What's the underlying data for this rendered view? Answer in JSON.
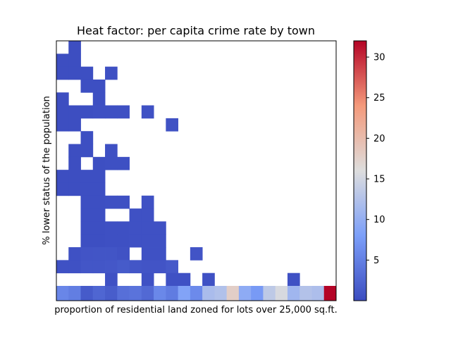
{
  "chart_data": {
    "type": "heatmap",
    "title": "Heat factor: per capita crime rate by town",
    "xlabel": "proportion of residential land zoned for lots over 25,000 sq.ft.",
    "ylabel": "% lower status of the population",
    "colormap": "coolwarm",
    "vmin": 0.0,
    "vmax": 32.0,
    "colorbar_ticks": [
      5,
      10,
      15,
      20,
      25,
      30
    ],
    "n_cols": 23,
    "n_rows": 21,
    "xticks_visible": false,
    "yticks_visible": false,
    "grid": false,
    "cells": [
      [
        0,
        1,
        0.2
      ],
      [
        1,
        0,
        0.2
      ],
      [
        1,
        1,
        0.2
      ],
      [
        2,
        0,
        0.2
      ],
      [
        2,
        1,
        0.2
      ],
      [
        2,
        2,
        0.3
      ],
      [
        2,
        4,
        0.4
      ],
      [
        3,
        2,
        0.3
      ],
      [
        3,
        3,
        0.3
      ],
      [
        4,
        0,
        0.2
      ],
      [
        4,
        3,
        0.3
      ],
      [
        5,
        0,
        0.2
      ],
      [
        5,
        1,
        0.2
      ],
      [
        5,
        2,
        0.3
      ],
      [
        5,
        3,
        0.4
      ],
      [
        5,
        4,
        0.4
      ],
      [
        5,
        5,
        0.4
      ],
      [
        5,
        7,
        0.5
      ],
      [
        6,
        0,
        0.2
      ],
      [
        6,
        1,
        0.2
      ],
      [
        6,
        9,
        0.6
      ],
      [
        7,
        2,
        0.3
      ],
      [
        8,
        1,
        0.2
      ],
      [
        8,
        2,
        0.3
      ],
      [
        8,
        4,
        0.4
      ],
      [
        9,
        1,
        0.2
      ],
      [
        9,
        3,
        0.3
      ],
      [
        9,
        4,
        0.4
      ],
      [
        9,
        5,
        0.4
      ],
      [
        10,
        0,
        0.2
      ],
      [
        10,
        1,
        0.2
      ],
      [
        10,
        2,
        0.3
      ],
      [
        10,
        3,
        0.3
      ],
      [
        11,
        0,
        0.2
      ],
      [
        11,
        1,
        0.2
      ],
      [
        11,
        2,
        0.3
      ],
      [
        11,
        3,
        0.3
      ],
      [
        12,
        2,
        0.3
      ],
      [
        12,
        3,
        0.3
      ],
      [
        12,
        4,
        0.4
      ],
      [
        12,
        5,
        0.4
      ],
      [
        12,
        7,
        0.5
      ],
      [
        13,
        2,
        0.3
      ],
      [
        13,
        3,
        0.3
      ],
      [
        13,
        6,
        0.5
      ],
      [
        13,
        7,
        0.5
      ],
      [
        14,
        2,
        0.3
      ],
      [
        14,
        3,
        0.3
      ],
      [
        14,
        4,
        0.4
      ],
      [
        14,
        5,
        0.4
      ],
      [
        14,
        6,
        0.5
      ],
      [
        14,
        7,
        0.5
      ],
      [
        14,
        8,
        0.5
      ],
      [
        15,
        2,
        0.3
      ],
      [
        15,
        3,
        0.3
      ],
      [
        15,
        4,
        0.4
      ],
      [
        15,
        5,
        0.4
      ],
      [
        15,
        6,
        0.5
      ],
      [
        15,
        7,
        0.5
      ],
      [
        15,
        8,
        0.5
      ],
      [
        16,
        1,
        0.5
      ],
      [
        16,
        2,
        0.8
      ],
      [
        16,
        3,
        0.9
      ],
      [
        16,
        4,
        0.9
      ],
      [
        16,
        5,
        0.6
      ],
      [
        16,
        7,
        0.5
      ],
      [
        16,
        8,
        0.5
      ],
      [
        16,
        11,
        0.8
      ],
      [
        17,
        0,
        0.5
      ],
      [
        17,
        1,
        0.5
      ],
      [
        17,
        2,
        1.0
      ],
      [
        17,
        3,
        1.0
      ],
      [
        17,
        4,
        1.1
      ],
      [
        17,
        5,
        1.4
      ],
      [
        17,
        6,
        1.0
      ],
      [
        17,
        7,
        0.8
      ],
      [
        17,
        8,
        0.8
      ],
      [
        17,
        9,
        1.3
      ],
      [
        18,
        4,
        0.5
      ],
      [
        18,
        7,
        0.5
      ],
      [
        18,
        9,
        0.5
      ],
      [
        18,
        10,
        0.5
      ],
      [
        18,
        12,
        0.5
      ],
      [
        18,
        19,
        0.5
      ],
      [
        19,
        0,
        5.6
      ],
      [
        19,
        1,
        4.8
      ],
      [
        19,
        2,
        1.4
      ],
      [
        19,
        3,
        2.5
      ],
      [
        19,
        4,
        1.6
      ],
      [
        19,
        5,
        3.4
      ],
      [
        19,
        6,
        3.8
      ],
      [
        19,
        7,
        2.8
      ],
      [
        19,
        8,
        5.8
      ],
      [
        19,
        9,
        4.6
      ],
      [
        19,
        10,
        8.5
      ],
      [
        19,
        11,
        6.0
      ],
      [
        19,
        12,
        11.8
      ],
      [
        19,
        13,
        12.4
      ],
      [
        19,
        14,
        17.8
      ],
      [
        19,
        15,
        9.5
      ],
      [
        19,
        16,
        7.5
      ],
      [
        19,
        17,
        13.4
      ],
      [
        19,
        18,
        15.5
      ],
      [
        19,
        19,
        11.0
      ],
      [
        19,
        20,
        12.5
      ],
      [
        19,
        21,
        12.0
      ],
      [
        19,
        22,
        32.0
      ]
    ]
  }
}
